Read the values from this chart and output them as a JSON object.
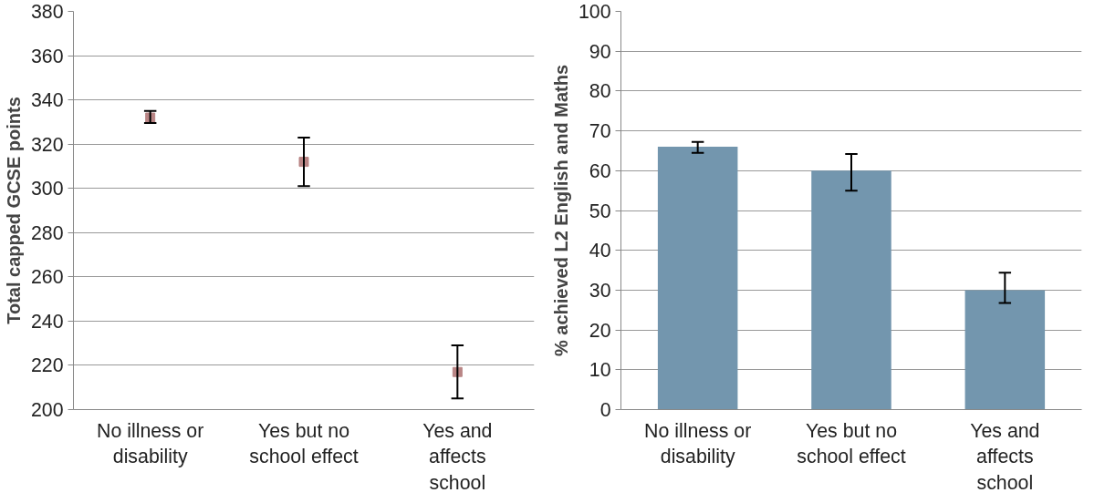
{
  "chart_data": [
    {
      "type": "scatter",
      "ylabel": "Total capped GCSE points",
      "categories": [
        "No illness or disability",
        "Yes but no school effect",
        "Yes and affects school"
      ],
      "series": [
        {
          "color": "#b98585",
          "values": [
            332,
            312,
            217
          ],
          "errors": [
            [
              329.5,
              335
            ],
            [
              301,
              323
            ],
            [
              205,
              229
            ]
          ]
        }
      ],
      "ylim": [
        200,
        380
      ],
      "yticks": [
        200,
        220,
        240,
        260,
        280,
        300,
        320,
        340,
        360,
        380
      ],
      "grid": "y",
      "marker": "square"
    },
    {
      "type": "bar",
      "ylabel": "% achieved L2 English and Maths",
      "categories": [
        "No illness or disability",
        "Yes but no school effect",
        "Yes and affects school"
      ],
      "series": [
        {
          "color": "#7396ae",
          "values": [
            66,
            60,
            30
          ],
          "errors": [
            [
              64.5,
              67.2
            ],
            [
              55,
              64.2
            ],
            [
              26.8,
              34.4
            ]
          ]
        }
      ],
      "ylim": [
        0,
        100
      ],
      "yticks": [
        0,
        10,
        20,
        30,
        40,
        50,
        60,
        70,
        80,
        90,
        100
      ],
      "grid": "y"
    }
  ]
}
